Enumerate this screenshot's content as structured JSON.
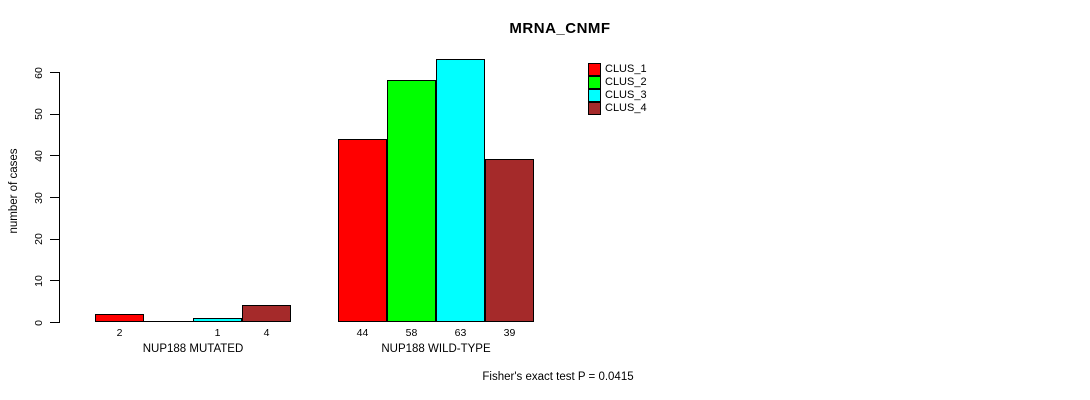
{
  "title": "MRNA_CNMF",
  "footer_annotation": "Fisher's exact test P = 0.0415",
  "chart_data": {
    "type": "bar",
    "title": "MRNA_CNMF",
    "xlabel": "",
    "ylabel": "number of cases",
    "ylim": [
      0,
      60
    ],
    "yticks": [
      0,
      10,
      20,
      30,
      40,
      50,
      60
    ],
    "grid": false,
    "legend_position": "top-right",
    "categories": [
      "NUP188 MUTATED",
      "NUP188 WILD-TYPE"
    ],
    "series": [
      {
        "name": "CLUS_1",
        "color": "#FF0000",
        "values": [
          2,
          44
        ]
      },
      {
        "name": "CLUS_2",
        "color": "#00FF00",
        "values": [
          0,
          58
        ]
      },
      {
        "name": "CLUS_3",
        "color": "#00FFFF",
        "values": [
          1,
          63
        ]
      },
      {
        "name": "CLUS_4",
        "color": "#A52A2A",
        "values": [
          4,
          39
        ]
      }
    ],
    "bar_value_labels_shown": true,
    "zero_value_labels_hidden": true,
    "annotation": "Fisher's exact test P = 0.0415"
  }
}
